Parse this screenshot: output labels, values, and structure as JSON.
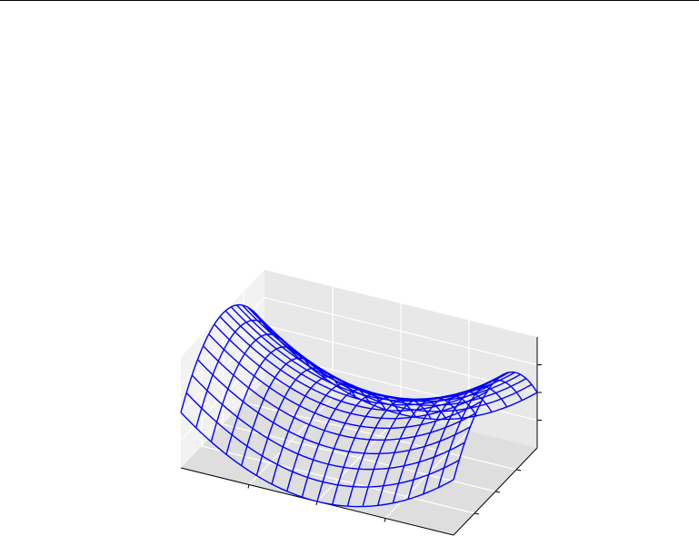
{
  "chart_data": {
    "type": "wireframe-3d",
    "title": "",
    "xlabel": "",
    "ylabel": "",
    "zlabel": "",
    "surface": "z = x^2 - y^2",
    "x_range": [
      -1,
      1
    ],
    "y_range": [
      -1,
      1
    ],
    "z_range": [
      -1,
      1
    ],
    "grid_lines_x": 19,
    "grid_lines_y": 16,
    "x_ticks": [
      -0.5,
      0,
      0.5
    ],
    "y_ticks": [
      -0.5,
      0,
      0.5
    ],
    "z_ticks": [
      -0.5,
      0,
      0.5
    ],
    "grid": true,
    "wire_color": "#0000ff",
    "pane_colors": [
      "#f2f2f2",
      "#e8e8e8",
      "#dedede"
    ]
  }
}
